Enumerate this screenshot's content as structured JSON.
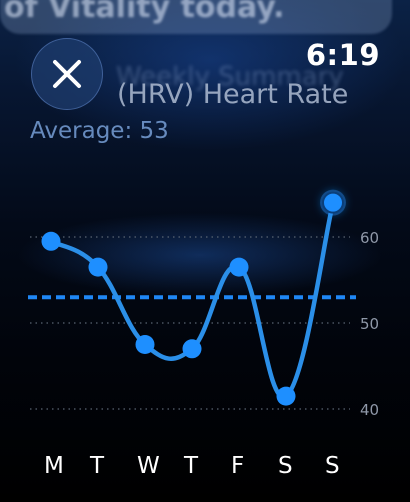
{
  "banner": {
    "text": "of Vitality today."
  },
  "ghost": {
    "text": "Weekly Summary"
  },
  "status": {
    "time": "6:19"
  },
  "header": {
    "title": "(HRV) Heart Rate",
    "average_label": "Average: 53",
    "close_icon": "close-x-icon"
  },
  "colors": {
    "accent": "#1e8fff",
    "line": "#2b8fe8",
    "average_line": "#1f87f5",
    "gridline": "#5a6472"
  },
  "chart_data": {
    "type": "line",
    "categories": [
      "M",
      "T",
      "W",
      "T",
      "F",
      "S",
      "S"
    ],
    "values": [
      59.5,
      56.5,
      47.5,
      47,
      56.5,
      41.5,
      64
    ],
    "average": 53,
    "yticks": [
      40,
      50,
      60
    ],
    "ytick_labels": [
      "40",
      "50",
      "60"
    ],
    "ylim": [
      40,
      60
    ],
    "grid": true,
    "highlight_index": 6
  }
}
